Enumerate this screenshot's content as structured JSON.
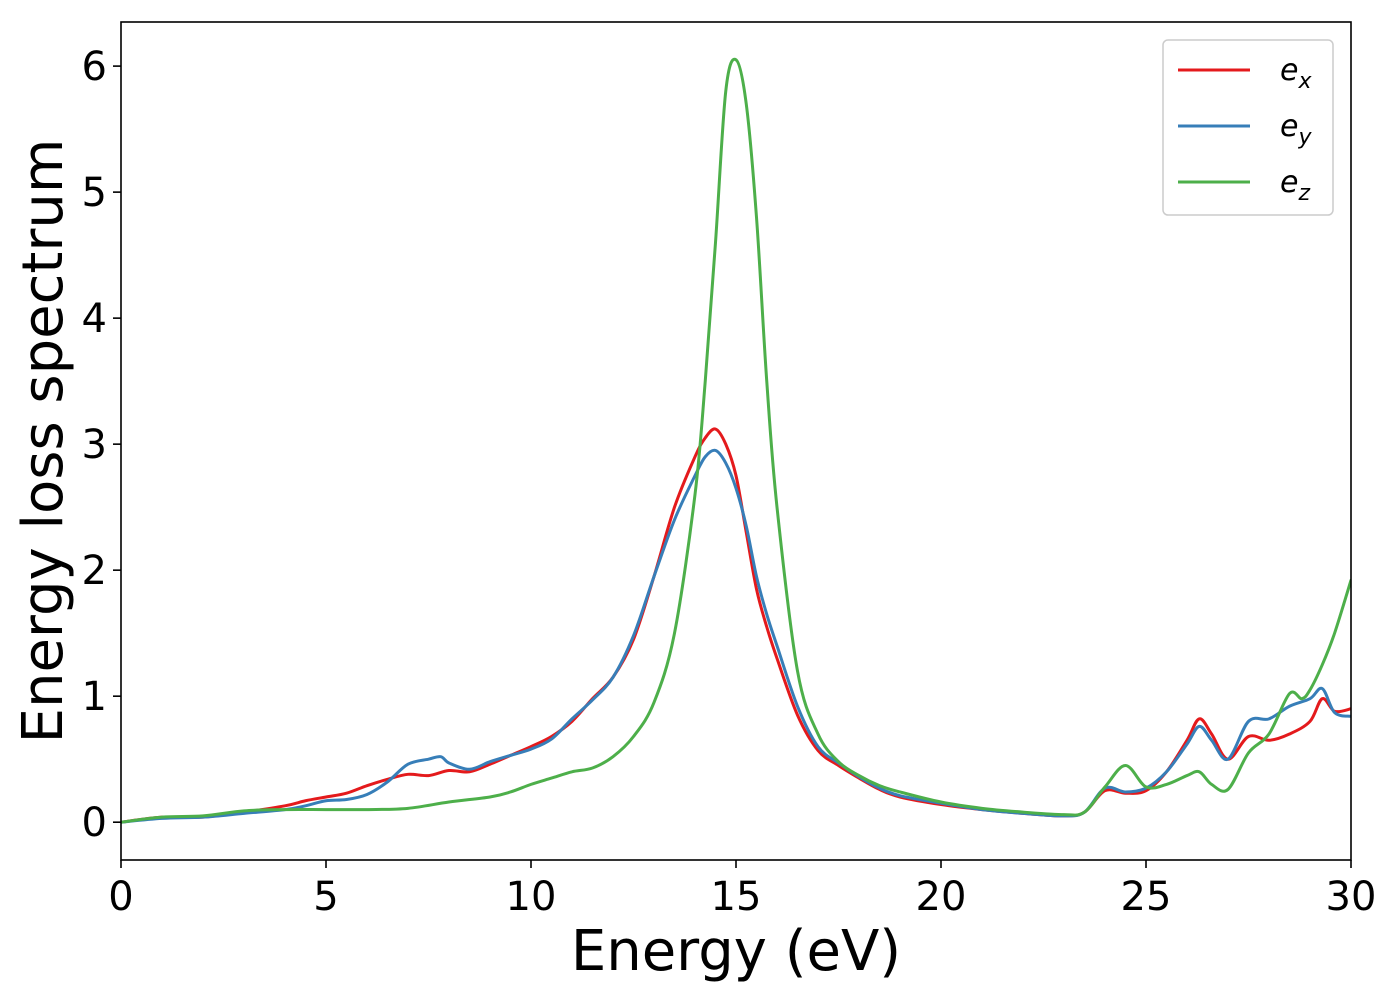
{
  "chart_data": {
    "type": "line",
    "title": "",
    "xlabel": "Energy (eV)",
    "ylabel": "Energy loss spectrum",
    "xlim": [
      0,
      30
    ],
    "ylim": [
      -0.3,
      6.35
    ],
    "xticks": [
      0,
      5,
      10,
      15,
      20,
      25,
      30
    ],
    "yticks": [
      0,
      1,
      2,
      3,
      4,
      5,
      6
    ],
    "grid": false,
    "legend_position": "top-right",
    "series": [
      {
        "name": "e_x",
        "legend_base": "e",
        "legend_sub": "x",
        "color": "#e41a1c",
        "x": [
          0,
          1,
          2,
          3,
          4,
          4.5,
          5,
          5.5,
          6,
          6.5,
          7,
          7.5,
          8,
          8.5,
          9,
          9.5,
          10,
          10.5,
          11,
          11.5,
          12,
          12.5,
          13,
          13.5,
          14,
          14.25,
          14.5,
          14.75,
          15,
          15.25,
          15.5,
          15.75,
          16,
          16.5,
          17,
          17.5,
          18,
          18.5,
          19,
          20,
          21,
          22,
          23,
          23.5,
          24,
          24.5,
          25,
          25.5,
          26,
          26.3,
          26.6,
          27,
          27.5,
          28,
          28.5,
          29,
          29.3,
          29.6,
          30
        ],
        "y": [
          0,
          0.04,
          0.04,
          0.08,
          0.13,
          0.17,
          0.2,
          0.23,
          0.29,
          0.34,
          0.38,
          0.37,
          0.41,
          0.4,
          0.46,
          0.53,
          0.6,
          0.68,
          0.8,
          0.98,
          1.15,
          1.45,
          1.95,
          2.5,
          2.9,
          3.05,
          3.12,
          3.0,
          2.75,
          2.3,
          1.85,
          1.55,
          1.3,
          0.85,
          0.57,
          0.45,
          0.35,
          0.26,
          0.2,
          0.14,
          0.1,
          0.07,
          0.05,
          0.08,
          0.25,
          0.23,
          0.25,
          0.4,
          0.65,
          0.82,
          0.7,
          0.5,
          0.68,
          0.65,
          0.7,
          0.8,
          0.98,
          0.88,
          0.9
        ]
      },
      {
        "name": "e_y",
        "legend_base": "e",
        "legend_sub": "y",
        "color": "#377eb8",
        "x": [
          0,
          1,
          2,
          3,
          4,
          4.5,
          5,
          5.5,
          6,
          6.5,
          7,
          7.5,
          7.8,
          8,
          8.5,
          9,
          9.5,
          10,
          10.5,
          11,
          11.5,
          12,
          12.5,
          13,
          13.5,
          14,
          14.25,
          14.5,
          14.75,
          15,
          15.25,
          15.5,
          15.75,
          16,
          16.5,
          17,
          17.5,
          18,
          18.5,
          19,
          20,
          21,
          22,
          23,
          23.5,
          24,
          24.5,
          25,
          25.5,
          26,
          26.3,
          26.6,
          27,
          27.5,
          28,
          28.5,
          29,
          29.3,
          29.6,
          30
        ],
        "y": [
          0,
          0.03,
          0.04,
          0.07,
          0.1,
          0.13,
          0.17,
          0.18,
          0.22,
          0.32,
          0.46,
          0.5,
          0.52,
          0.47,
          0.42,
          0.48,
          0.53,
          0.58,
          0.66,
          0.82,
          0.97,
          1.15,
          1.48,
          1.95,
          2.4,
          2.75,
          2.9,
          2.95,
          2.85,
          2.65,
          2.35,
          1.95,
          1.65,
          1.4,
          0.92,
          0.6,
          0.47,
          0.36,
          0.27,
          0.21,
          0.15,
          0.1,
          0.07,
          0.05,
          0.08,
          0.27,
          0.24,
          0.27,
          0.4,
          0.62,
          0.76,
          0.65,
          0.5,
          0.8,
          0.82,
          0.92,
          0.98,
          1.06,
          0.87,
          0.84
        ]
      },
      {
        "name": "e_z",
        "legend_base": "e",
        "legend_sub": "z",
        "color": "#4daf4a",
        "x": [
          0,
          1,
          2,
          3,
          4,
          5,
          6,
          7,
          8,
          9,
          9.5,
          10,
          10.5,
          11,
          11.5,
          12,
          12.5,
          13,
          13.5,
          14,
          14.25,
          14.5,
          14.75,
          15,
          15.25,
          15.5,
          15.75,
          16,
          16.5,
          17,
          17.5,
          18,
          18.5,
          19,
          20,
          21,
          22,
          23,
          23.5,
          24,
          24.5,
          25,
          25.5,
          26,
          26.3,
          26.6,
          27,
          27.5,
          28,
          28.5,
          28.8,
          29,
          29.3,
          29.6,
          30
        ],
        "y": [
          0,
          0.04,
          0.05,
          0.09,
          0.1,
          0.1,
          0.1,
          0.11,
          0.16,
          0.2,
          0.24,
          0.3,
          0.35,
          0.4,
          0.43,
          0.52,
          0.68,
          0.95,
          1.5,
          2.6,
          3.5,
          4.6,
          5.8,
          6.05,
          5.7,
          4.8,
          3.5,
          2.5,
          1.2,
          0.7,
          0.48,
          0.37,
          0.29,
          0.24,
          0.16,
          0.11,
          0.08,
          0.06,
          0.08,
          0.28,
          0.45,
          0.28,
          0.3,
          0.37,
          0.4,
          0.3,
          0.26,
          0.55,
          0.7,
          1.02,
          0.98,
          1.05,
          1.25,
          1.5,
          1.92
        ]
      }
    ]
  }
}
